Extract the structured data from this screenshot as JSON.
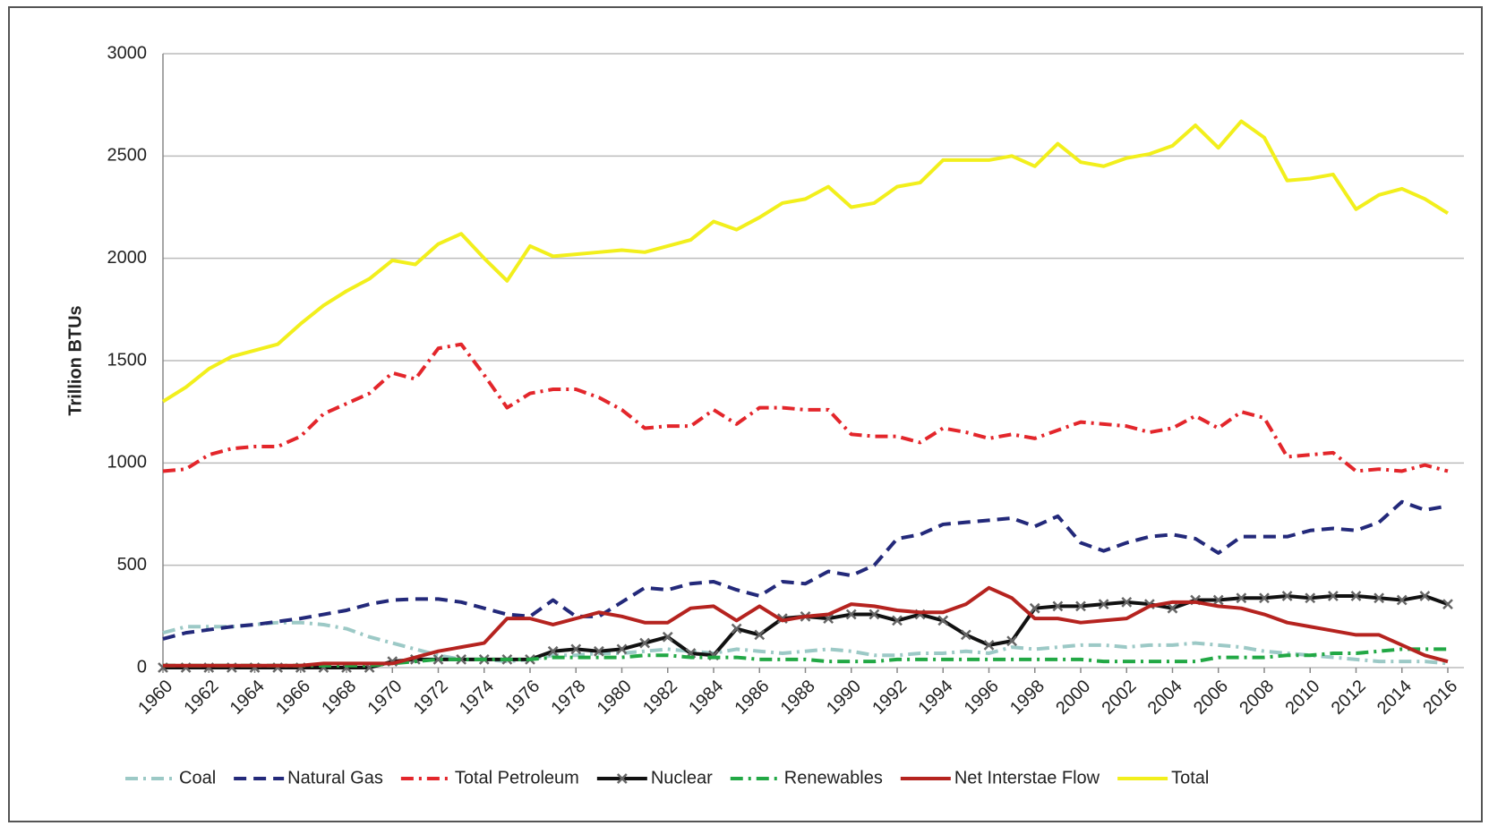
{
  "chart_data": {
    "type": "line",
    "y_label": "Trillion BTUs",
    "x": [
      1960,
      1961,
      1962,
      1963,
      1964,
      1965,
      1966,
      1967,
      1968,
      1969,
      1970,
      1971,
      1972,
      1973,
      1974,
      1975,
      1976,
      1977,
      1978,
      1979,
      1980,
      1981,
      1982,
      1983,
      1984,
      1985,
      1986,
      1987,
      1988,
      1989,
      1990,
      1991,
      1992,
      1993,
      1994,
      1995,
      1996,
      1997,
      1998,
      1999,
      2000,
      2001,
      2002,
      2003,
      2004,
      2005,
      2006,
      2007,
      2008,
      2009,
      2010,
      2011,
      2012,
      2013,
      2014,
      2015,
      2016
    ],
    "xlim": [
      1960,
      2016
    ],
    "xticks": [
      1960,
      1962,
      1964,
      1966,
      1968,
      1970,
      1972,
      1974,
      1976,
      1978,
      1980,
      1982,
      1984,
      1986,
      1988,
      1990,
      1992,
      1994,
      1996,
      1998,
      2000,
      2002,
      2004,
      2006,
      2008,
      2010,
      2012,
      2014,
      2016
    ],
    "ylim": [
      0,
      3000
    ],
    "yticks": [
      0,
      500,
      1000,
      1500,
      2000,
      2500,
      3000
    ],
    "grid": true,
    "legend": "bottom",
    "series": [
      {
        "name": "Coal",
        "color": "#9cc9c6",
        "values": [
          170,
          200,
          200,
          200,
          210,
          220,
          220,
          210,
          190,
          150,
          120,
          90,
          60,
          40,
          40,
          30,
          40,
          60,
          60,
          70,
          70,
          80,
          90,
          80,
          70,
          90,
          80,
          70,
          80,
          90,
          80,
          60,
          60,
          70,
          70,
          80,
          70,
          100,
          90,
          100,
          110,
          110,
          100,
          110,
          110,
          120,
          110,
          100,
          80,
          70,
          60,
          50,
          40,
          30,
          30,
          30,
          20
        ]
      },
      {
        "name": "Natural Gas",
        "color": "#23297a",
        "values": [
          140,
          170,
          185,
          200,
          210,
          225,
          240,
          260,
          280,
          310,
          330,
          335,
          335,
          320,
          290,
          260,
          250,
          330,
          250,
          250,
          320,
          390,
          380,
          410,
          420,
          380,
          350,
          420,
          410,
          470,
          450,
          500,
          630,
          650,
          700,
          710,
          720,
          730,
          690,
          740,
          610,
          570,
          610,
          640,
          650,
          630,
          560,
          640,
          640,
          640,
          670,
          680,
          670,
          710,
          810,
          770,
          790
        ]
      },
      {
        "name": "Total Petroleum",
        "color": "#e3262b",
        "values": [
          960,
          970,
          1040,
          1070,
          1080,
          1080,
          1130,
          1240,
          1290,
          1340,
          1440,
          1410,
          1560,
          1580,
          1430,
          1270,
          1340,
          1360,
          1360,
          1320,
          1260,
          1170,
          1180,
          1180,
          1260,
          1190,
          1270,
          1270,
          1260,
          1260,
          1140,
          1130,
          1130,
          1100,
          1170,
          1150,
          1120,
          1140,
          1120,
          1160,
          1200,
          1190,
          1180,
          1150,
          1170,
          1230,
          1170,
          1250,
          1220,
          1030,
          1040,
          1050,
          960,
          970,
          960,
          990,
          960
        ]
      },
      {
        "name": "Nuclear",
        "color": "#111111",
        "values": [
          0,
          0,
          0,
          0,
          0,
          0,
          0,
          0,
          0,
          0,
          30,
          40,
          40,
          40,
          40,
          40,
          40,
          80,
          90,
          80,
          90,
          120,
          150,
          70,
          60,
          190,
          160,
          240,
          250,
          240,
          260,
          260,
          230,
          260,
          230,
          160,
          110,
          130,
          290,
          300,
          300,
          310,
          320,
          310,
          290,
          330,
          330,
          340,
          340,
          350,
          340,
          350,
          350,
          340,
          330,
          350,
          310
        ]
      },
      {
        "name": "Renewables",
        "color": "#22a845",
        "values": [
          10,
          10,
          10,
          10,
          10,
          10,
          10,
          10,
          10,
          10,
          20,
          30,
          40,
          40,
          40,
          40,
          40,
          50,
          50,
          50,
          50,
          60,
          60,
          50,
          50,
          50,
          40,
          40,
          40,
          30,
          30,
          30,
          40,
          40,
          40,
          40,
          40,
          40,
          40,
          40,
          40,
          30,
          30,
          30,
          30,
          30,
          50,
          50,
          50,
          60,
          60,
          70,
          70,
          80,
          90,
          90,
          90
        ]
      },
      {
        "name": "Net Interstae Flow",
        "color": "#b5231f",
        "values": [
          10,
          10,
          10,
          10,
          10,
          10,
          10,
          20,
          20,
          20,
          20,
          50,
          80,
          100,
          120,
          240,
          240,
          210,
          240,
          270,
          250,
          220,
          220,
          290,
          300,
          230,
          300,
          230,
          250,
          260,
          310,
          300,
          280,
          270,
          270,
          310,
          390,
          340,
          240,
          240,
          220,
          230,
          240,
          300,
          320,
          320,
          300,
          290,
          260,
          220,
          200,
          180,
          160,
          160,
          110,
          60,
          30
        ]
      },
      {
        "name": "Total",
        "color": "#f2ef1c",
        "values": [
          1300,
          1370,
          1460,
          1520,
          1550,
          1580,
          1680,
          1770,
          1840,
          1900,
          1990,
          1970,
          2070,
          2120,
          2000,
          1890,
          2060,
          2010,
          2020,
          2030,
          2040,
          2030,
          2060,
          2090,
          2180,
          2140,
          2200,
          2270,
          2290,
          2350,
          2250,
          2270,
          2350,
          2370,
          2480,
          2480,
          2480,
          2500,
          2450,
          2560,
          2470,
          2450,
          2490,
          2510,
          2550,
          2650,
          2540,
          2670,
          2590,
          2380,
          2390,
          2410,
          2240,
          2310,
          2340,
          2290,
          2220
        ]
      }
    ]
  }
}
